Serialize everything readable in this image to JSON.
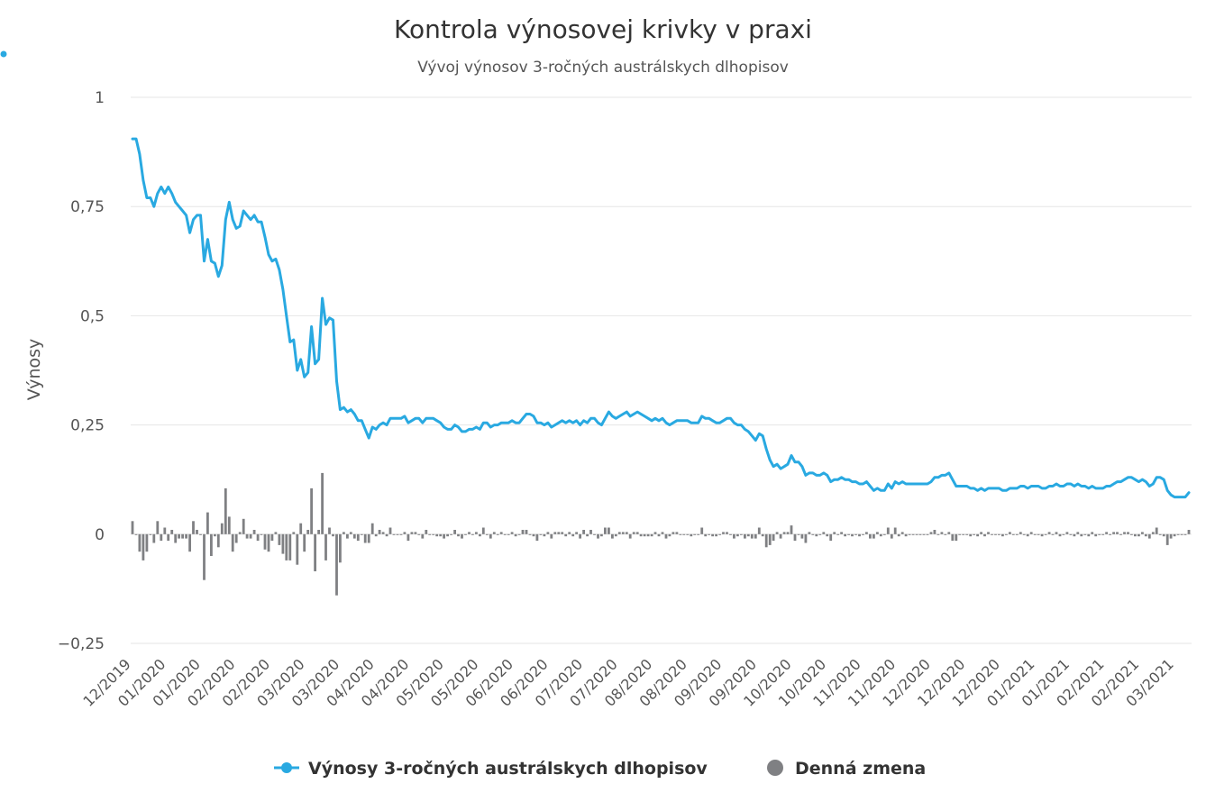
{
  "chart_data": {
    "type": "line",
    "title": "Kontrola výnosovej krivky v praxi",
    "subtitle": "Vývoj výnosov 3-ročných austrálskych dlhopisov",
    "ylabel": "Výnosy",
    "xlabel": "",
    "ylim": [
      -0.25,
      1
    ],
    "y_ticks": [
      1,
      0.75,
      0.5,
      0.25,
      0,
      -0.25
    ],
    "y_tick_labels": [
      "1",
      "0,75",
      "0,5",
      "0,25",
      "0",
      "−0,25"
    ],
    "x_tick_labels": [
      "12/2019",
      "01/2020",
      "01/2020",
      "02/2020",
      "02/2020",
      "03/2020",
      "03/2020",
      "04/2020",
      "04/2020",
      "05/2020",
      "05/2020",
      "06/2020",
      "06/2020",
      "07/2020",
      "07/2020",
      "08/2020",
      "08/2020",
      "09/2020",
      "09/2020",
      "10/2020",
      "10/2020",
      "11/2020",
      "11/2020",
      "12/2020",
      "12/2020",
      "12/2020",
      "01/2021",
      "01/2021",
      "02/2021",
      "02/2021",
      "03/2021"
    ],
    "grid": true,
    "legend_position": "bottom-center",
    "colors": {
      "yield": "#29a9e1",
      "change": "#7f8083"
    },
    "series": [
      {
        "name": "Výnosy 3-ročných austrálskych dlhopisov",
        "type": "line",
        "values": [
          0.905,
          0.905,
          0.87,
          0.81,
          0.77,
          0.77,
          0.75,
          0.78,
          0.795,
          0.78,
          0.795,
          0.78,
          0.76,
          0.75,
          0.74,
          0.73,
          0.69,
          0.72,
          0.73,
          0.73,
          0.625,
          0.675,
          0.625,
          0.62,
          0.59,
          0.615,
          0.72,
          0.76,
          0.72,
          0.7,
          0.705,
          0.74,
          0.73,
          0.72,
          0.73,
          0.715,
          0.715,
          0.68,
          0.64,
          0.625,
          0.63,
          0.605,
          0.56,
          0.5,
          0.44,
          0.445,
          0.375,
          0.4,
          0.36,
          0.37,
          0.475,
          0.39,
          0.4,
          0.54,
          0.48,
          0.495,
          0.49,
          0.35,
          0.285,
          0.29,
          0.28,
          0.285,
          0.275,
          0.26,
          0.26,
          0.24,
          0.22,
          0.245,
          0.24,
          0.25,
          0.255,
          0.25,
          0.265,
          0.265,
          0.265,
          0.265,
          0.27,
          0.255,
          0.26,
          0.265,
          0.265,
          0.255,
          0.265,
          0.265,
          0.265,
          0.26,
          0.255,
          0.245,
          0.24,
          0.24,
          0.25,
          0.245,
          0.235,
          0.235,
          0.24,
          0.24,
          0.245,
          0.24,
          0.255,
          0.255,
          0.245,
          0.25,
          0.25,
          0.255,
          0.255,
          0.255,
          0.26,
          0.255,
          0.255,
          0.265,
          0.275,
          0.275,
          0.27,
          0.255,
          0.255,
          0.25,
          0.255,
          0.245,
          0.25,
          0.255,
          0.26,
          0.255,
          0.26,
          0.255,
          0.26,
          0.25,
          0.26,
          0.255,
          0.265,
          0.265,
          0.255,
          0.25,
          0.265,
          0.28,
          0.27,
          0.265,
          0.27,
          0.275,
          0.28,
          0.27,
          0.275,
          0.28,
          0.275,
          0.27,
          0.265,
          0.26,
          0.265,
          0.26,
          0.265,
          0.255,
          0.25,
          0.255,
          0.26,
          0.26,
          0.26,
          0.26,
          0.255,
          0.255,
          0.255,
          0.27,
          0.265,
          0.265,
          0.26,
          0.255,
          0.255,
          0.26,
          0.265,
          0.265,
          0.255,
          0.25,
          0.25,
          0.24,
          0.235,
          0.225,
          0.215,
          0.23,
          0.225,
          0.195,
          0.17,
          0.155,
          0.16,
          0.15,
          0.155,
          0.16,
          0.18,
          0.165,
          0.165,
          0.155,
          0.135,
          0.14,
          0.14,
          0.135,
          0.135,
          0.14,
          0.135,
          0.12,
          0.125,
          0.125,
          0.13,
          0.125,
          0.125,
          0.12,
          0.12,
          0.115,
          0.115,
          0.12,
          0.11,
          0.1,
          0.105,
          0.1,
          0.1,
          0.115,
          0.105,
          0.12,
          0.115,
          0.12,
          0.115,
          0.115,
          0.115,
          0.115,
          0.115,
          0.115,
          0.115,
          0.12,
          0.13,
          0.13,
          0.135,
          0.135,
          0.14,
          0.125,
          0.11,
          0.11,
          0.11,
          0.11,
          0.105,
          0.105,
          0.1,
          0.105,
          0.1,
          0.105,
          0.105,
          0.105,
          0.105,
          0.1,
          0.1,
          0.105,
          0.105,
          0.105,
          0.11,
          0.11,
          0.105,
          0.11,
          0.11,
          0.11,
          0.105,
          0.105,
          0.11,
          0.11,
          0.115,
          0.11,
          0.11,
          0.115,
          0.115,
          0.11,
          0.115,
          0.11,
          0.11,
          0.105,
          0.11,
          0.105,
          0.105,
          0.105,
          0.11,
          0.11,
          0.115,
          0.12,
          0.12,
          0.125,
          0.13,
          0.13,
          0.125,
          0.12,
          0.125,
          0.12,
          0.11,
          0.115,
          0.13,
          0.13,
          0.125,
          0.1,
          0.09,
          0.085,
          0.085,
          0.085,
          0.085,
          0.095
        ]
      },
      {
        "name": "Denná zmena",
        "type": "bar",
        "values": [
          0.03,
          0.0,
          -0.04,
          -0.06,
          -0.04,
          0.0,
          -0.02,
          0.03,
          -0.015,
          0.015,
          -0.015,
          0.01,
          -0.02,
          -0.01,
          -0.01,
          -0.01,
          -0.04,
          0.03,
          0.01,
          0.0,
          -0.105,
          0.05,
          -0.05,
          -0.005,
          -0.03,
          0.025,
          0.105,
          0.04,
          -0.04,
          -0.02,
          0.005,
          0.035,
          -0.01,
          -0.01,
          0.01,
          -0.015,
          0.0,
          -0.035,
          -0.04,
          -0.015,
          0.005,
          -0.025,
          -0.045,
          -0.06,
          -0.06,
          0.005,
          -0.07,
          0.025,
          -0.04,
          0.01,
          0.105,
          -0.085,
          0.01,
          0.14,
          -0.06,
          0.015,
          -0.005,
          -0.14,
          -0.065,
          0.005,
          -0.01,
          0.005,
          -0.01,
          -0.015,
          0.0,
          -0.02,
          -0.02,
          0.025,
          -0.005,
          0.01,
          0.005,
          -0.005,
          0.015,
          0.0,
          0.0,
          0.0,
          0.005,
          -0.015,
          0.005,
          0.005,
          0.0,
          -0.01,
          0.01,
          0.0,
          0.0,
          -0.005,
          -0.005,
          -0.01,
          -0.005,
          0.0,
          0.01,
          -0.005,
          -0.01,
          0.0,
          0.005,
          0.0,
          0.005,
          -0.005,
          0.015,
          0.0,
          -0.01,
          0.005,
          0.0,
          0.005,
          0.0,
          0.0,
          0.005,
          -0.005,
          0.0,
          0.01,
          0.01,
          0.0,
          -0.005,
          -0.015,
          0.0,
          -0.005,
          0.005,
          -0.01,
          0.005,
          0.005,
          0.005,
          -0.005,
          0.005,
          -0.005,
          0.005,
          -0.01,
          0.01,
          -0.005,
          0.01,
          0.0,
          -0.01,
          -0.005,
          0.015,
          0.015,
          -0.01,
          -0.005,
          0.005,
          0.005,
          0.005,
          -0.01,
          0.005,
          0.005,
          -0.005,
          -0.005,
          -0.005,
          -0.005,
          0.005,
          -0.005,
          0.005,
          -0.01,
          -0.005,
          0.005,
          0.005,
          0.0,
          0.0,
          0.0,
          -0.005,
          0.0,
          0.0,
          0.015,
          -0.005,
          0.0,
          -0.005,
          -0.005,
          0.0,
          0.005,
          0.005,
          0.0,
          -0.01,
          -0.005,
          0.0,
          -0.01,
          -0.005,
          -0.01,
          -0.01,
          0.015,
          -0.005,
          -0.03,
          -0.025,
          -0.015,
          0.005,
          -0.01,
          0.005,
          0.005,
          0.02,
          -0.015,
          0.0,
          -0.01,
          -0.02,
          0.005,
          0.0,
          -0.005,
          0.0,
          0.005,
          -0.005,
          -0.015,
          0.005,
          0.0,
          0.005,
          -0.005,
          0.0,
          -0.005,
          0.0,
          -0.005,
          0.0,
          0.005,
          -0.01,
          -0.01,
          0.005,
          -0.005,
          0.0,
          0.015,
          -0.01,
          0.015,
          -0.005,
          0.005,
          -0.005,
          0.0,
          0.0,
          0.0,
          0.0,
          0.0,
          0.0,
          0.005,
          0.01,
          0.0,
          0.005,
          0.0,
          0.005,
          -0.015,
          -0.015,
          0.0,
          0.0,
          0.0,
          -0.005,
          0.0,
          -0.005,
          0.005,
          -0.005,
          0.005,
          0.0,
          0.0,
          0.0,
          -0.005,
          0.0,
          0.005,
          0.0,
          0.0,
          0.005,
          0.0,
          -0.005,
          0.005,
          0.0,
          0.0,
          -0.005,
          0.0,
          0.005,
          0.0,
          0.005,
          -0.005,
          0.0,
          0.005,
          0.0,
          -0.005,
          0.005,
          -0.005,
          0.0,
          -0.005,
          0.005,
          -0.005,
          0.0,
          0.0,
          0.005,
          0.0,
          0.005,
          0.005,
          0.0,
          0.005,
          0.005,
          0.0,
          -0.005,
          -0.005,
          0.005,
          -0.005,
          -0.01,
          0.005,
          0.015,
          0.0,
          -0.005,
          -0.025,
          -0.01,
          -0.005,
          0.0,
          0.0,
          0.0,
          0.01
        ]
      }
    ]
  }
}
